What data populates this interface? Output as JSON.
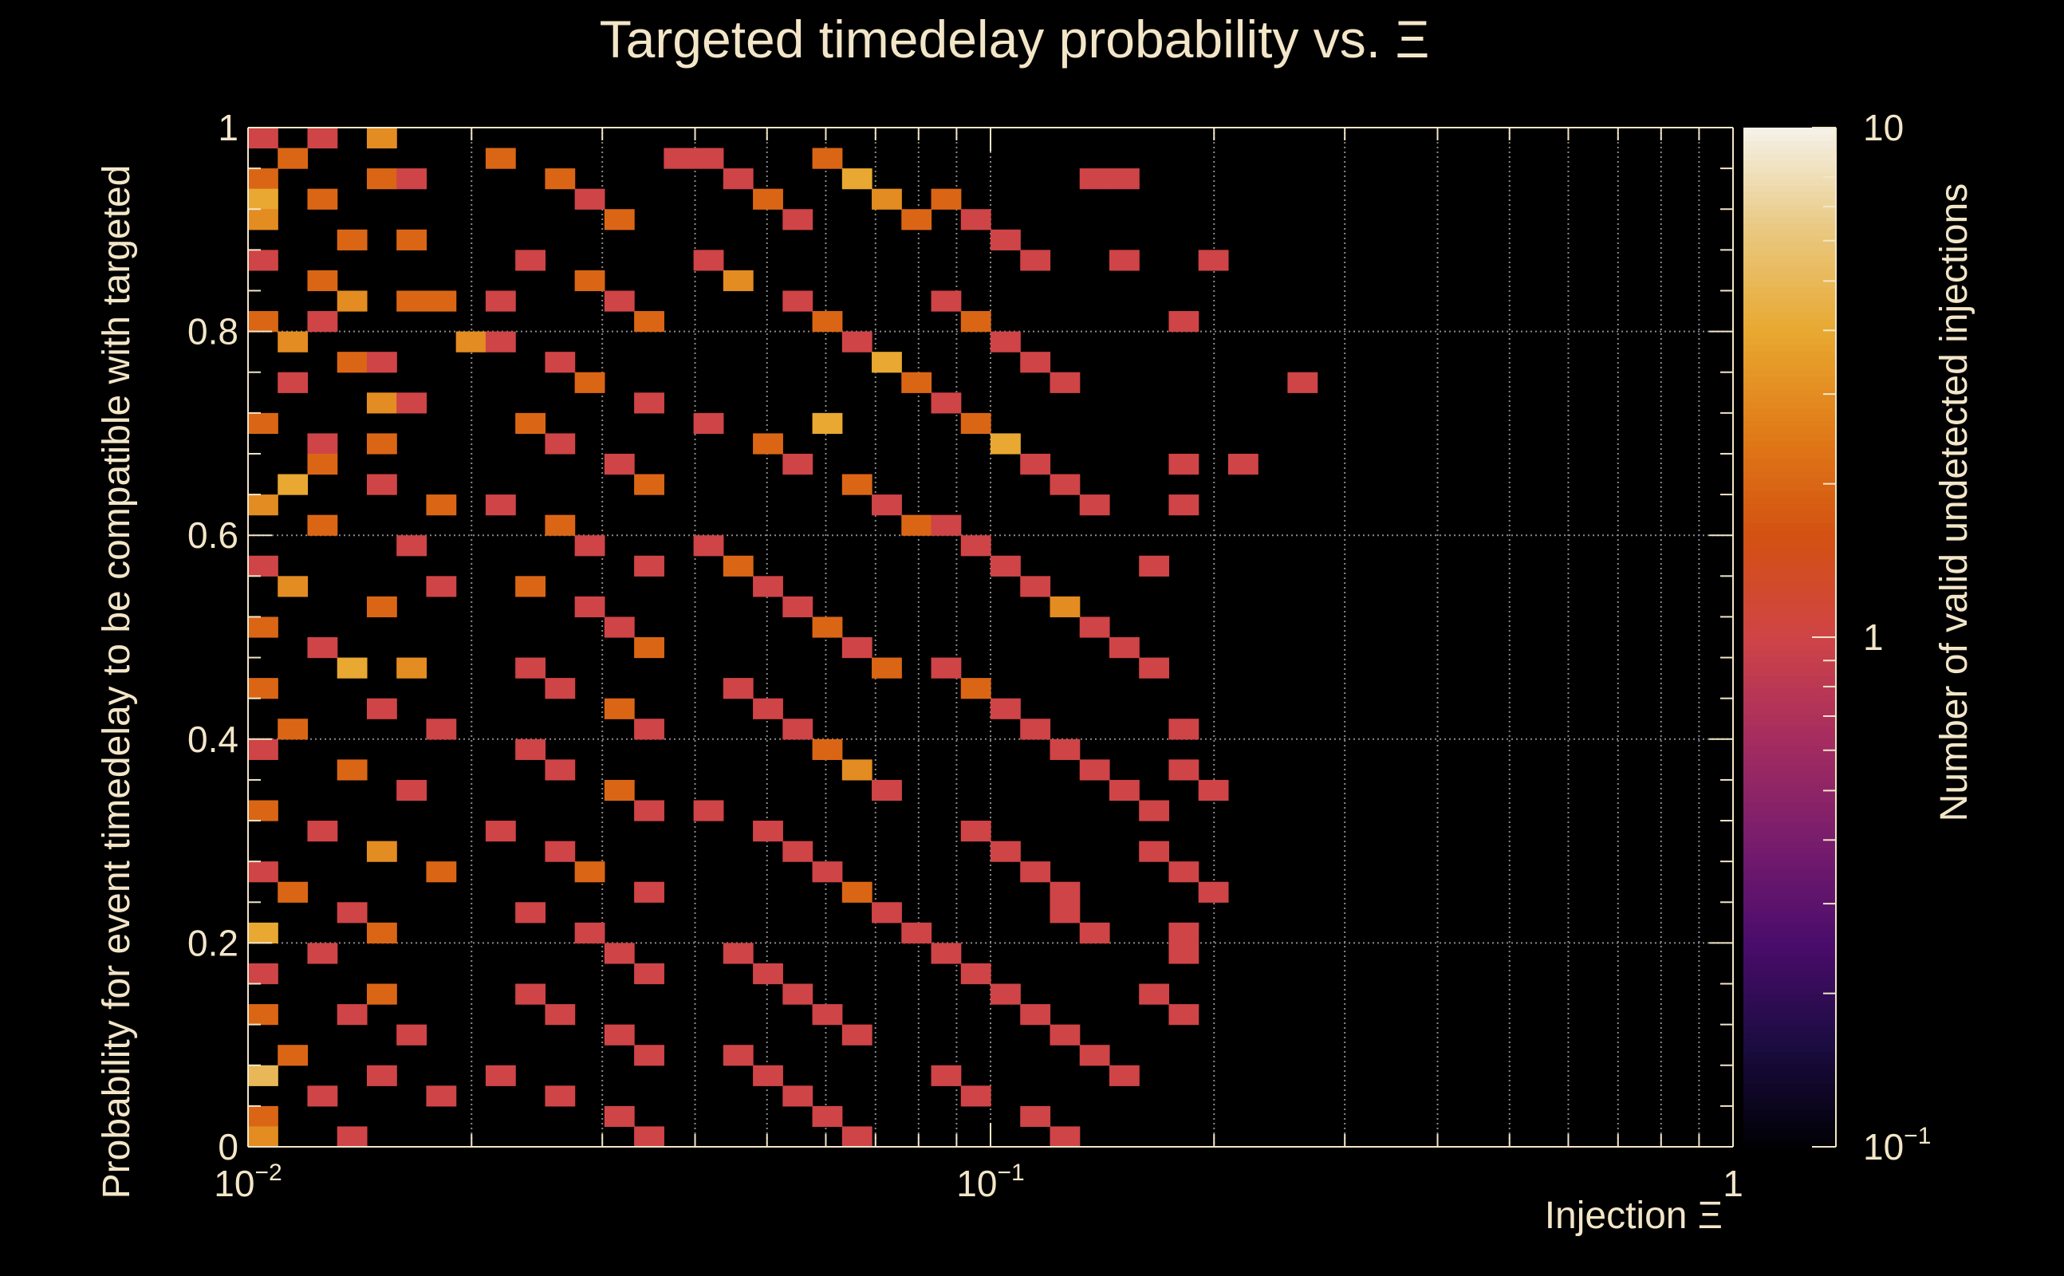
{
  "chart_data": {
    "type": "heatmap",
    "title": "Targeted timedelay probability vs.  Ξ",
    "xlabel": "Injection Ξ",
    "ylabel": "Probability for event timedelay to be compatible with targeted",
    "colorbar_label": "Number of valid undetected injections",
    "x_scale": "log",
    "xlim": [
      0.01,
      1
    ],
    "ylim": [
      0,
      1
    ],
    "z_scale": "log",
    "zlim": [
      0.1,
      10
    ],
    "grid": true,
    "x_tick_labels": [
      {
        "base": "10",
        "exp": "−2",
        "value": 0.01
      },
      {
        "base": "10",
        "exp": "−1",
        "value": 0.1
      },
      {
        "base": "1",
        "exp": "",
        "value": 1
      }
    ],
    "y_tick_labels": [
      {
        "label": "0",
        "value": 0
      },
      {
        "label": "0.2",
        "value": 0.2
      },
      {
        "label": "0.4",
        "value": 0.4
      },
      {
        "label": "0.6",
        "value": 0.6
      },
      {
        "label": "0.8",
        "value": 0.8
      },
      {
        "label": "1",
        "value": 1
      }
    ],
    "colorbar_tick_labels": [
      {
        "base": "10",
        "exp": "",
        "value": 10
      },
      {
        "base": "1",
        "exp": "",
        "value": 1
      },
      {
        "base": "10",
        "exp": "−1",
        "value": 0.1
      }
    ],
    "colormap": [
      "#000004",
      "#1b0c41",
      "#4a0c6b",
      "#781c6d",
      "#a52c60",
      "#cf4446",
      "#d35112",
      "#e07b18",
      "#e8a830",
      "#e9c880",
      "#f5f2ea"
    ],
    "x_bins": 50,
    "y_bins": 50,
    "cells": [
      [
        0.0103,
        0.99,
        1
      ],
      [
        0.0115,
        0.97,
        2
      ],
      [
        0.0125,
        0.99,
        1
      ],
      [
        0.0147,
        0.99,
        3
      ],
      [
        0.0106,
        0.95,
        2
      ],
      [
        0.0108,
        0.93,
        4
      ],
      [
        0.0129,
        0.93,
        2
      ],
      [
        0.0154,
        0.95,
        2
      ],
      [
        0.0172,
        0.95,
        1
      ],
      [
        0.0105,
        0.91,
        3
      ],
      [
        0.0136,
        0.89,
        2
      ],
      [
        0.0168,
        0.89,
        2
      ],
      [
        0.0107,
        0.87,
        1
      ],
      [
        0.0124,
        0.85,
        2
      ],
      [
        0.0142,
        0.83,
        3
      ],
      [
        0.0161,
        0.83,
        2
      ],
      [
        0.0182,
        0.83,
        2
      ],
      [
        0.0213,
        0.83,
        1
      ],
      [
        0.0102,
        0.81,
        2
      ],
      [
        0.0124,
        0.81,
        1
      ],
      [
        0.0112,
        0.79,
        3
      ],
      [
        0.0137,
        0.77,
        2
      ],
      [
        0.0156,
        0.77,
        1
      ],
      [
        0.0196,
        0.79,
        3
      ],
      [
        0.0118,
        0.75,
        1
      ],
      [
        0.0146,
        0.73,
        3
      ],
      [
        0.0171,
        0.73,
        1
      ],
      [
        0.0103,
        0.71,
        2
      ],
      [
        0.0126,
        0.69,
        1
      ],
      [
        0.0149,
        0.69,
        2
      ],
      [
        0.0113,
        0.65,
        4
      ],
      [
        0.0124,
        0.67,
        2
      ],
      [
        0.0157,
        0.65,
        1
      ],
      [
        0.0183,
        0.63,
        2
      ],
      [
        0.0104,
        0.63,
        3
      ],
      [
        0.0131,
        0.61,
        2
      ],
      [
        0.0167,
        0.59,
        1
      ],
      [
        0.0105,
        0.57,
        1
      ],
      [
        0.0119,
        0.55,
        3
      ],
      [
        0.0148,
        0.53,
        2
      ],
      [
        0.0177,
        0.55,
        1
      ],
      [
        0.0103,
        0.51,
        2
      ],
      [
        0.0124,
        0.49,
        1
      ],
      [
        0.0137,
        0.47,
        4
      ],
      [
        0.0163,
        0.47,
        3
      ],
      [
        0.0106,
        0.45,
        2
      ],
      [
        0.0149,
        0.43,
        1
      ],
      [
        0.0115,
        0.41,
        2
      ],
      [
        0.0184,
        0.41,
        1
      ],
      [
        0.0102,
        0.39,
        1
      ],
      [
        0.0138,
        0.37,
        2
      ],
      [
        0.0167,
        0.35,
        1
      ],
      [
        0.0108,
        0.33,
        2
      ],
      [
        0.0124,
        0.31,
        1
      ],
      [
        0.0145,
        0.29,
        3
      ],
      [
        0.0104,
        0.27,
        1
      ],
      [
        0.0178,
        0.27,
        2
      ],
      [
        0.0113,
        0.25,
        2
      ],
      [
        0.0134,
        0.23,
        1
      ],
      [
        0.0102,
        0.21,
        4
      ],
      [
        0.0156,
        0.21,
        2
      ],
      [
        0.0121,
        0.19,
        1
      ],
      [
        0.0109,
        0.17,
        1
      ],
      [
        0.0147,
        0.15,
        2
      ],
      [
        0.0103,
        0.13,
        2
      ],
      [
        0.0132,
        0.13,
        1
      ],
      [
        0.0171,
        0.11,
        1
      ],
      [
        0.0114,
        0.09,
        2
      ],
      [
        0.0152,
        0.07,
        1
      ],
      [
        0.0102,
        0.07,
        5
      ],
      [
        0.0126,
        0.05,
        1
      ],
      [
        0.0189,
        0.05,
        1
      ],
      [
        0.0105,
        0.03,
        2
      ],
      [
        0.0142,
        0.01,
        1
      ],
      [
        0.0101,
        0.01,
        3
      ],
      [
        0.0225,
        0.97,
        2
      ],
      [
        0.0252,
        0.95,
        2
      ],
      [
        0.0289,
        0.93,
        1
      ],
      [
        0.0325,
        0.91,
        2
      ],
      [
        0.0365,
        0.97,
        1
      ],
      [
        0.0243,
        0.87,
        1
      ],
      [
        0.0278,
        0.85,
        2
      ],
      [
        0.0318,
        0.83,
        1
      ],
      [
        0.0356,
        0.81,
        2
      ],
      [
        0.0229,
        0.79,
        1
      ],
      [
        0.0264,
        0.77,
        1
      ],
      [
        0.0301,
        0.75,
        2
      ],
      [
        0.0339,
        0.73,
        1
      ],
      [
        0.0239,
        0.71,
        2
      ],
      [
        0.0275,
        0.69,
        1
      ],
      [
        0.0311,
        0.67,
        1
      ],
      [
        0.0351,
        0.65,
        2
      ],
      [
        0.0226,
        0.63,
        1
      ],
      [
        0.0266,
        0.61,
        2
      ],
      [
        0.0294,
        0.59,
        1
      ],
      [
        0.0333,
        0.57,
        1
      ],
      [
        0.0247,
        0.55,
        2
      ],
      [
        0.0283,
        0.53,
        1
      ],
      [
        0.0321,
        0.51,
        1
      ],
      [
        0.0361,
        0.49,
        2
      ],
      [
        0.0232,
        0.47,
        1
      ],
      [
        0.0269,
        0.45,
        1
      ],
      [
        0.0307,
        0.43,
        2
      ],
      [
        0.0345,
        0.41,
        1
      ],
      [
        0.0238,
        0.39,
        1
      ],
      [
        0.0274,
        0.37,
        1
      ],
      [
        0.0315,
        0.35,
        2
      ],
      [
        0.0351,
        0.33,
        1
      ],
      [
        0.0228,
        0.31,
        1
      ],
      [
        0.0261,
        0.29,
        1
      ],
      [
        0.0299,
        0.27,
        2
      ],
      [
        0.0336,
        0.25,
        1
      ],
      [
        0.0245,
        0.23,
        1
      ],
      [
        0.0283,
        0.21,
        1
      ],
      [
        0.0322,
        0.19,
        1
      ],
      [
        0.0358,
        0.17,
        1
      ],
      [
        0.0236,
        0.15,
        1
      ],
      [
        0.0271,
        0.13,
        1
      ],
      [
        0.0309,
        0.11,
        1
      ],
      [
        0.0347,
        0.09,
        1
      ],
      [
        0.0229,
        0.07,
        1
      ],
      [
        0.0266,
        0.05,
        1
      ],
      [
        0.0303,
        0.03,
        1
      ],
      [
        0.0341,
        0.01,
        1
      ],
      [
        0.0405,
        0.97,
        1
      ],
      [
        0.0452,
        0.95,
        1
      ],
      [
        0.0503,
        0.93,
        2
      ],
      [
        0.0557,
        0.91,
        1
      ],
      [
        0.0612,
        0.97,
        2
      ],
      [
        0.0664,
        0.95,
        4
      ],
      [
        0.0727,
        0.93,
        3
      ],
      [
        0.0785,
        0.91,
        2
      ],
      [
        0.0419,
        0.87,
        1
      ],
      [
        0.0471,
        0.85,
        3
      ],
      [
        0.0526,
        0.83,
        1
      ],
      [
        0.0585,
        0.81,
        2
      ],
      [
        0.0641,
        0.79,
        1
      ],
      [
        0.0703,
        0.77,
        4
      ],
      [
        0.0762,
        0.75,
        2
      ],
      [
        0.0432,
        0.71,
        1
      ],
      [
        0.0488,
        0.69,
        2
      ],
      [
        0.0544,
        0.67,
        1
      ],
      [
        0.0598,
        0.71,
        4
      ],
      [
        0.0657,
        0.65,
        2
      ],
      [
        0.0715,
        0.63,
        1
      ],
      [
        0.0772,
        0.61,
        2
      ],
      [
        0.0413,
        0.59,
        1
      ],
      [
        0.0463,
        0.57,
        2
      ],
      [
        0.0517,
        0.55,
        1
      ],
      [
        0.0571,
        0.53,
        1
      ],
      [
        0.0627,
        0.51,
        2
      ],
      [
        0.0682,
        0.49,
        1
      ],
      [
        0.0744,
        0.47,
        2
      ],
      [
        0.0444,
        0.45,
        1
      ],
      [
        0.0497,
        0.43,
        1
      ],
      [
        0.0553,
        0.41,
        1
      ],
      [
        0.0606,
        0.39,
        2
      ],
      [
        0.0669,
        0.37,
        3
      ],
      [
        0.0735,
        0.35,
        1
      ],
      [
        0.0427,
        0.33,
        1
      ],
      [
        0.0481,
        0.31,
        1
      ],
      [
        0.0538,
        0.29,
        1
      ],
      [
        0.0592,
        0.27,
        1
      ],
      [
        0.0651,
        0.25,
        2
      ],
      [
        0.0709,
        0.23,
        1
      ],
      [
        0.0768,
        0.21,
        1
      ],
      [
        0.0457,
        0.19,
        1
      ],
      [
        0.0511,
        0.17,
        1
      ],
      [
        0.0565,
        0.15,
        1
      ],
      [
        0.0622,
        0.13,
        1
      ],
      [
        0.0677,
        0.11,
        1
      ],
      [
        0.0438,
        0.09,
        1
      ],
      [
        0.0493,
        0.07,
        1
      ],
      [
        0.0549,
        0.05,
        1
      ],
      [
        0.0603,
        0.03,
        1
      ],
      [
        0.0661,
        0.01,
        1
      ],
      [
        0.0865,
        0.93,
        2
      ],
      [
        0.0955,
        0.91,
        1
      ],
      [
        0.1045,
        0.89,
        1
      ],
      [
        0.1135,
        0.87,
        1
      ],
      [
        0.0892,
        0.83,
        1
      ],
      [
        0.0978,
        0.81,
        2
      ],
      [
        0.1072,
        0.79,
        1
      ],
      [
        0.1163,
        0.77,
        1
      ],
      [
        0.1259,
        0.75,
        1
      ],
      [
        0.0846,
        0.73,
        1
      ],
      [
        0.0927,
        0.71,
        2
      ],
      [
        0.1018,
        0.69,
        4
      ],
      [
        0.1113,
        0.67,
        1
      ],
      [
        0.1218,
        0.65,
        1
      ],
      [
        0.1329,
        0.63,
        1
      ],
      [
        0.0877,
        0.61,
        1
      ],
      [
        0.0961,
        0.59,
        1
      ],
      [
        0.1058,
        0.57,
        1
      ],
      [
        0.1148,
        0.55,
        1
      ],
      [
        0.1247,
        0.53,
        3
      ],
      [
        0.1363,
        0.51,
        1
      ],
      [
        0.1469,
        0.49,
        1
      ],
      [
        0.0857,
        0.47,
        1
      ],
      [
        0.0945,
        0.45,
        2
      ],
      [
        0.1035,
        0.43,
        1
      ],
      [
        0.1131,
        0.41,
        1
      ],
      [
        0.1239,
        0.39,
        1
      ],
      [
        0.1351,
        0.37,
        1
      ],
      [
        0.1462,
        0.35,
        1
      ],
      [
        0.1585,
        0.33,
        1
      ],
      [
        0.0915,
        0.31,
        1
      ],
      [
        0.1005,
        0.29,
        1
      ],
      [
        0.1098,
        0.27,
        1
      ],
      [
        0.1205,
        0.25,
        1
      ],
      [
        0.1309,
        0.23,
        1
      ],
      [
        0.1425,
        0.21,
        1
      ],
      [
        0.0869,
        0.19,
        1
      ],
      [
        0.0958,
        0.17,
        1
      ],
      [
        0.1052,
        0.15,
        1
      ],
      [
        0.1156,
        0.13,
        1
      ],
      [
        0.1266,
        0.11,
        1
      ],
      [
        0.1387,
        0.09,
        1
      ],
      [
        0.0903,
        0.07,
        1
      ],
      [
        0.0994,
        0.05,
        1
      ],
      [
        0.1122,
        0.03,
        1
      ],
      [
        0.1235,
        0.01,
        1
      ],
      [
        0.1365,
        0.95,
        1
      ],
      [
        0.1495,
        0.95,
        1
      ],
      [
        0.1565,
        0.87,
        1
      ],
      [
        0.2019,
        0.87,
        1
      ],
      [
        0.1773,
        0.81,
        1
      ],
      [
        0.2515,
        0.75,
        1
      ],
      [
        0.1832,
        0.67,
        1
      ],
      [
        0.2128,
        0.67,
        1
      ],
      [
        0.1747,
        0.63,
        1
      ],
      [
        0.1655,
        0.57,
        1
      ],
      [
        0.1691,
        0.47,
        1
      ],
      [
        0.1791,
        0.41,
        1
      ],
      [
        0.1887,
        0.37,
        1
      ],
      [
        0.2048,
        0.35,
        1
      ],
      [
        0.1721,
        0.29,
        1
      ],
      [
        0.1893,
        0.27,
        1
      ],
      [
        0.2015,
        0.25,
        1
      ],
      [
        0.1759,
        0.21,
        1
      ],
      [
        0.1904,
        0.19,
        1
      ],
      [
        0.1667,
        0.15,
        1
      ],
      [
        0.1821,
        0.13,
        1
      ],
      [
        0.1561,
        0.07,
        1
      ]
    ]
  }
}
